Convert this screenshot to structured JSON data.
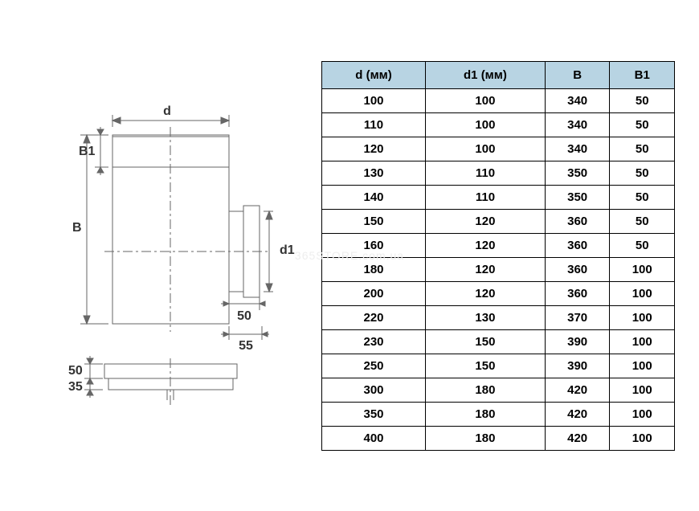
{
  "diagram": {
    "labels": {
      "d": "d",
      "B": "В",
      "B1": "В1",
      "d1": "d1",
      "50_side": "50",
      "55": "55",
      "50_bottom": "50",
      "35": "35"
    },
    "colors": {
      "line": "#666666",
      "text": "#333333"
    }
  },
  "watermark": "365STORE.com.ua",
  "table": {
    "columns": [
      "d (мм)",
      "d1 (мм)",
      "В",
      "В1"
    ],
    "rows": [
      [
        "100",
        "100",
        "340",
        "50"
      ],
      [
        "110",
        "100",
        "340",
        "50"
      ],
      [
        "120",
        "100",
        "340",
        "50"
      ],
      [
        "130",
        "110",
        "350",
        "50"
      ],
      [
        "140",
        "110",
        "350",
        "50"
      ],
      [
        "150",
        "120",
        "360",
        "50"
      ],
      [
        "160",
        "120",
        "360",
        "50"
      ],
      [
        "180",
        "120",
        "360",
        "100"
      ],
      [
        "200",
        "120",
        "360",
        "100"
      ],
      [
        "220",
        "130",
        "370",
        "100"
      ],
      [
        "230",
        "150",
        "390",
        "100"
      ],
      [
        "250",
        "150",
        "390",
        "100"
      ],
      [
        "300",
        "180",
        "420",
        "100"
      ],
      [
        "350",
        "180",
        "420",
        "100"
      ],
      [
        "400",
        "180",
        "420",
        "100"
      ]
    ],
    "header_bg": "#b8d4e3",
    "border_color": "#000"
  }
}
